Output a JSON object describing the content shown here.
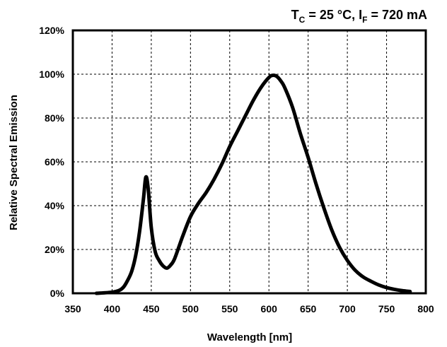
{
  "chart_data": {
    "type": "line",
    "title": {
      "prefix": "T",
      "sub1": "C",
      "mid": " = 25 °C, I",
      "sub2": "F",
      "suffix": " = 720 mA"
    },
    "xlabel": "Wavelength  [nm]",
    "ylabel": "Relative Spectral Emission",
    "xlim": [
      350,
      800
    ],
    "ylim": [
      0,
      120
    ],
    "x_ticks": [
      350,
      400,
      450,
      500,
      550,
      600,
      650,
      700,
      750,
      800
    ],
    "y_ticks": [
      0,
      20,
      40,
      60,
      80,
      100,
      120
    ],
    "y_tick_labels": [
      "0%",
      "20%",
      "40%",
      "60%",
      "80%",
      "100%",
      "120%"
    ],
    "grid": true,
    "line_color": "#000000",
    "series": [
      {
        "x": [
          380,
          400,
          410,
          415,
          420,
          425,
          430,
          435,
          440,
          443,
          446,
          450,
          455,
          460,
          465,
          470,
          475,
          480,
          490,
          500,
          510,
          520,
          530,
          540,
          550,
          560,
          570,
          580,
          590,
          600,
          605,
          610,
          615,
          620,
          630,
          640,
          650,
          660,
          670,
          680,
          690,
          700,
          710,
          720,
          730,
          740,
          750,
          760,
          770,
          780
        ],
        "y": [
          0,
          0.5,
          1.5,
          3,
          6,
          10,
          17,
          28,
          43,
          53,
          48,
          30,
          19,
          15,
          12.5,
          11.5,
          13,
          16,
          26,
          35,
          41,
          46,
          52,
          59,
          67,
          74,
          81,
          88,
          94,
          98.5,
          99.5,
          99,
          97,
          94,
          85,
          73,
          62,
          50,
          39,
          29,
          21,
          15,
          10.5,
          7.5,
          5.5,
          3.8,
          2.6,
          1.8,
          1.2,
          0.8
        ]
      }
    ]
  }
}
